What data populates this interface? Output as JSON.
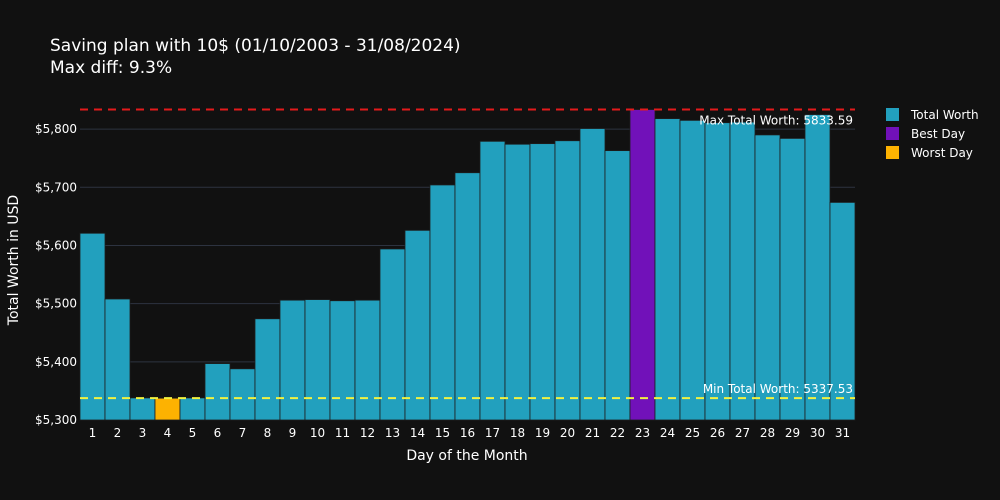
{
  "chart_data": {
    "type": "bar",
    "title": "Saving plan with 10$ (01/10/2003 - 31/08/2024)",
    "subtitle": "Max diff: 9.3%",
    "xlabel": "Day of the Month",
    "ylabel": "Total Worth in USD",
    "ylim": [
      5300,
      5850
    ],
    "yticks": [
      5300,
      5400,
      5500,
      5600,
      5700,
      5800
    ],
    "ytick_labels": [
      "$5,300",
      "$5,400",
      "$5,500",
      "$5,600",
      "$5,700",
      "$5,800"
    ],
    "categories": [
      "1",
      "2",
      "3",
      "4",
      "5",
      "6",
      "7",
      "8",
      "9",
      "10",
      "11",
      "12",
      "13",
      "14",
      "15",
      "16",
      "17",
      "18",
      "19",
      "20",
      "21",
      "22",
      "23",
      "24",
      "25",
      "26",
      "27",
      "28",
      "29",
      "30",
      "31"
    ],
    "values": [
      5621,
      5508,
      5338,
      5337.53,
      5338,
      5397,
      5388,
      5474,
      5506,
      5507,
      5505,
      5506,
      5594,
      5626,
      5704,
      5725,
      5779,
      5774,
      5775,
      5780,
      5801,
      5763,
      5833.59,
      5818,
      5815,
      5811,
      5812,
      5790,
      5784,
      5825,
      5674
    ],
    "best_index": 22,
    "worst_index": 3,
    "grid": true,
    "legend_position": "top-right",
    "legend": [
      {
        "label": "Total Worth",
        "color": "#22a0be"
      },
      {
        "label": "Best Day",
        "color": "#7111b9"
      },
      {
        "label": "Worst Day",
        "color": "#fdb201"
      }
    ],
    "max_line": {
      "value": 5833.59,
      "label": "Max Total Worth: 5833.59",
      "color": "#e31a1c"
    },
    "min_line": {
      "value": 5337.53,
      "label": "Min Total Worth: 5337.53",
      "color": "#f2f240"
    },
    "colors": {
      "bar": "#22a0be",
      "best": "#7111b9",
      "worst": "#fdb201",
      "background": "#111111",
      "grid": "#2d3340",
      "bar_outline": "#1d1d1d"
    }
  }
}
